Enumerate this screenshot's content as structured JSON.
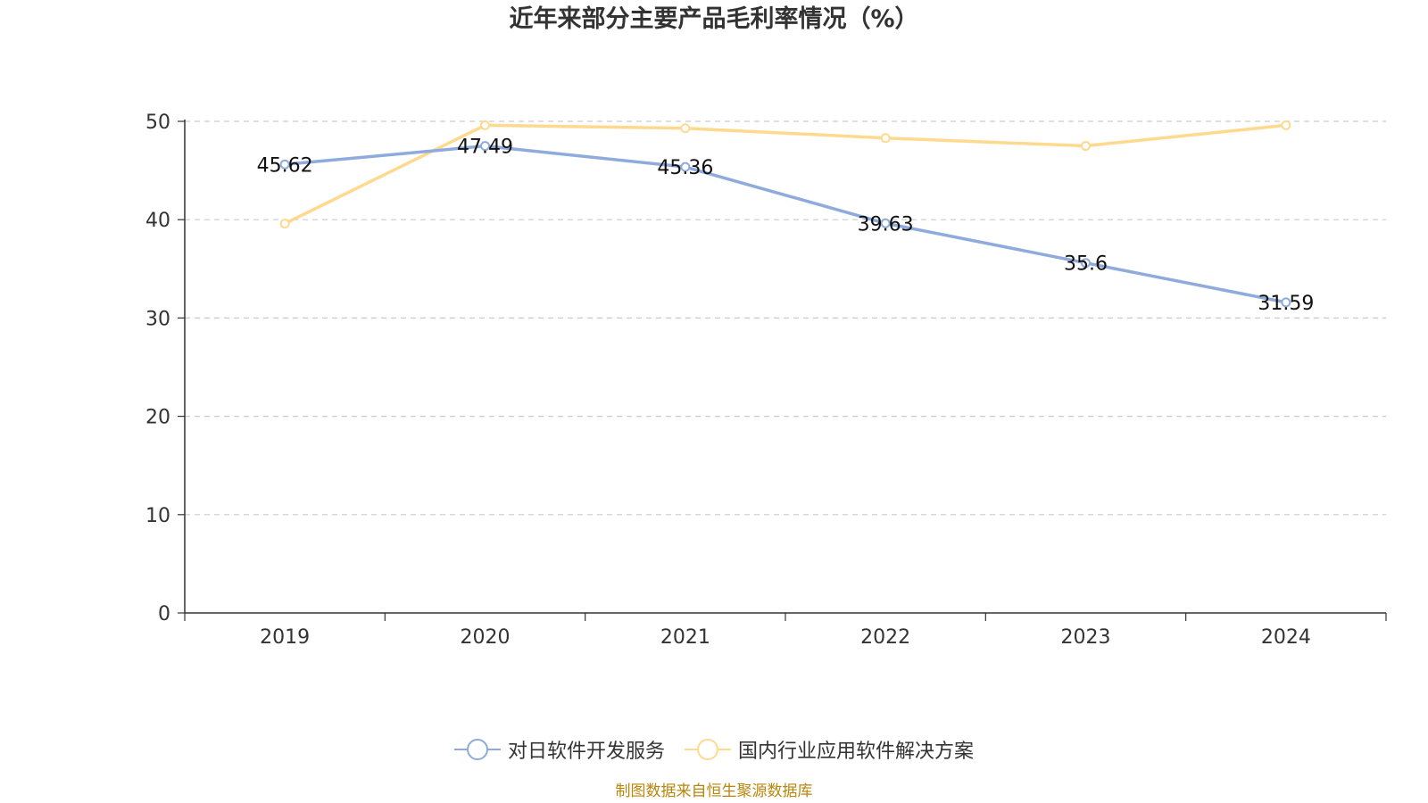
{
  "chart_data": {
    "type": "line",
    "title": "近年来部分主要产品毛利率情况（%）",
    "categories": [
      "2019",
      "2020",
      "2021",
      "2022",
      "2023",
      "2024"
    ],
    "ylim": [
      0,
      50
    ],
    "yticks": [
      0,
      10,
      20,
      30,
      40,
      50
    ],
    "grid": "horizontal dashed",
    "legend_position": "bottom-center",
    "series": [
      {
        "name": "对日软件开发服务",
        "color": "#8faadc",
        "values": [
          45.62,
          47.49,
          45.36,
          39.63,
          35.6,
          31.59
        ],
        "data_labels": [
          "45.62",
          "47.49",
          "45.36",
          "39.63",
          "35.6",
          "31.59"
        ]
      },
      {
        "name": "国内行业应用软件解决方案",
        "color": "#ffd98e",
        "values": [
          39.6,
          49.6,
          49.3,
          48.3,
          47.5,
          49.6
        ],
        "data_labels": []
      }
    ]
  },
  "source_note": "制图数据来自恒生聚源数据库"
}
